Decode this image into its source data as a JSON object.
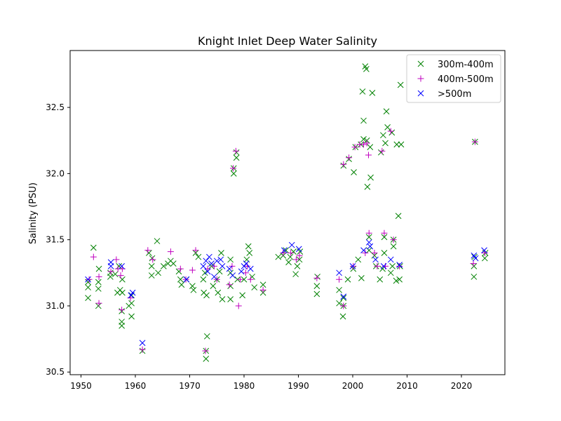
{
  "chart_data": {
    "type": "scatter",
    "title": "Knight Inlet Deep Water Salinity",
    "xlabel": "",
    "ylabel": "Salinity (PSU)",
    "xlim": [
      1948,
      2028
    ],
    "ylim": [
      30.48,
      32.93
    ],
    "xticks": [
      1950,
      1960,
      1970,
      1980,
      1990,
      2000,
      2010,
      2020
    ],
    "yticks": [
      30.5,
      31.0,
      31.5,
      32.0,
      32.5
    ],
    "ytick_labels": [
      "30.5",
      "31.0",
      "31.5",
      "32.0",
      "32.5"
    ],
    "grid": false,
    "legend_position": "top-right",
    "series": [
      {
        "name": "300m-400m",
        "marker": "x",
        "color": "#008000",
        "points": [
          [
            1951.3,
            31.06
          ],
          [
            1951.3,
            31.14
          ],
          [
            1951.3,
            31.18
          ],
          [
            1952.3,
            31.44
          ],
          [
            1953.2,
            31.0
          ],
          [
            1953.2,
            31.13
          ],
          [
            1953.2,
            31.18
          ],
          [
            1953.3,
            31.28
          ],
          [
            1955.4,
            31.22
          ],
          [
            1955.4,
            31.25
          ],
          [
            1956.3,
            31.24
          ],
          [
            1956.7,
            31.1
          ],
          [
            1957.0,
            31.3
          ],
          [
            1957.2,
            31.12
          ],
          [
            1957.5,
            30.85
          ],
          [
            1957.5,
            30.88
          ],
          [
            1957.5,
            30.96
          ],
          [
            1957.6,
            31.1
          ],
          [
            1957.6,
            31.2
          ],
          [
            1958.8,
            31.0
          ],
          [
            1959.3,
            30.92
          ],
          [
            1959.3,
            31.02
          ],
          [
            1959.3,
            31.08
          ],
          [
            1961.3,
            30.66
          ],
          [
            1962.5,
            31.4
          ],
          [
            1963.0,
            31.23
          ],
          [
            1963.0,
            31.3
          ],
          [
            1963.1,
            31.36
          ],
          [
            1964.0,
            31.49
          ],
          [
            1964.2,
            31.25
          ],
          [
            1965.2,
            31.3
          ],
          [
            1966.0,
            31.32
          ],
          [
            1966.5,
            31.34
          ],
          [
            1967.0,
            31.32
          ],
          [
            1968.0,
            31.26
          ],
          [
            1968.3,
            31.2
          ],
          [
            1968.5,
            31.16
          ],
          [
            1969.4,
            31.2
          ],
          [
            1970.5,
            31.15
          ],
          [
            1970.7,
            31.12
          ],
          [
            1971.1,
            31.4
          ],
          [
            1971.6,
            31.37
          ],
          [
            1972.5,
            31.2
          ],
          [
            1972.6,
            31.1
          ],
          [
            1972.8,
            31.25
          ],
          [
            1973.0,
            30.66
          ],
          [
            1973.0,
            30.6
          ],
          [
            1973.1,
            31.08
          ],
          [
            1973.2,
            30.77
          ],
          [
            1974.0,
            31.3
          ],
          [
            1974.3,
            31.15
          ],
          [
            1975.0,
            31.2
          ],
          [
            1975.2,
            31.1
          ],
          [
            1975.5,
            31.26
          ],
          [
            1975.8,
            31.4
          ],
          [
            1976.0,
            31.05
          ],
          [
            1977.5,
            31.05
          ],
          [
            1977.5,
            31.15
          ],
          [
            1977.5,
            31.25
          ],
          [
            1977.5,
            31.35
          ],
          [
            1978.1,
            32.0
          ],
          [
            1978.1,
            32.04
          ],
          [
            1978.6,
            32.12
          ],
          [
            1978.6,
            32.16
          ],
          [
            1978.8,
            31.2
          ],
          [
            1979.7,
            31.08
          ],
          [
            1980.0,
            31.2
          ],
          [
            1980.5,
            31.35
          ],
          [
            1980.8,
            31.45
          ],
          [
            1981.0,
            31.4
          ],
          [
            1981.5,
            31.22
          ],
          [
            1981.9,
            31.14
          ],
          [
            1983.5,
            31.1
          ],
          [
            1983.5,
            31.16
          ],
          [
            1986.3,
            31.37
          ],
          [
            1987.2,
            31.38
          ],
          [
            1987.7,
            31.42
          ],
          [
            1988.2,
            31.33
          ],
          [
            1988.5,
            31.37
          ],
          [
            1989.1,
            31.41
          ],
          [
            1989.5,
            31.24
          ],
          [
            1989.8,
            31.3
          ],
          [
            1990.2,
            31.35
          ],
          [
            1990.3,
            31.41
          ],
          [
            1993.4,
            31.09
          ],
          [
            1993.4,
            31.15
          ],
          [
            1993.5,
            31.22
          ],
          [
            1997.5,
            31.02
          ],
          [
            1997.5,
            31.12
          ],
          [
            1998.2,
            30.92
          ],
          [
            1998.3,
            31.0
          ],
          [
            1998.3,
            31.06
          ],
          [
            1998.3,
            32.06
          ],
          [
            1999.1,
            31.2
          ],
          [
            1999.3,
            32.11
          ],
          [
            2000.1,
            31.28
          ],
          [
            2000.2,
            32.01
          ],
          [
            2000.5,
            32.2
          ],
          [
            2001.0,
            31.35
          ],
          [
            2001.5,
            32.22
          ],
          [
            2001.6,
            31.21
          ],
          [
            2001.8,
            32.62
          ],
          [
            2002.0,
            32.26
          ],
          [
            2002.0,
            32.4
          ],
          [
            2002.3,
            32.81
          ],
          [
            2002.5,
            32.79
          ],
          [
            2002.6,
            32.25
          ],
          [
            2002.7,
            31.9
          ],
          [
            2003.0,
            31.42
          ],
          [
            2003.0,
            31.52
          ],
          [
            2003.2,
            32.2
          ],
          [
            2003.3,
            31.97
          ],
          [
            2003.6,
            32.61
          ],
          [
            2004.0,
            31.38
          ],
          [
            2004.3,
            31.3
          ],
          [
            2005.0,
            31.2
          ],
          [
            2005.2,
            32.16
          ],
          [
            2005.5,
            31.28
          ],
          [
            2005.6,
            32.29
          ],
          [
            2005.8,
            31.4
          ],
          [
            2005.8,
            31.52
          ],
          [
            2006.0,
            32.23
          ],
          [
            2006.2,
            32.47
          ],
          [
            2006.4,
            32.35
          ],
          [
            2007.0,
            31.25
          ],
          [
            2007.2,
            32.31
          ],
          [
            2007.3,
            31.3
          ],
          [
            2007.5,
            31.45
          ],
          [
            2007.5,
            31.5
          ],
          [
            2008.0,
            31.19
          ],
          [
            2008.1,
            32.22
          ],
          [
            2008.4,
            31.68
          ],
          [
            2008.6,
            31.2
          ],
          [
            2008.7,
            31.3
          ],
          [
            2008.8,
            32.67
          ],
          [
            2008.9,
            32.22
          ],
          [
            2022.3,
            31.22
          ],
          [
            2022.3,
            31.3
          ],
          [
            2022.4,
            31.37
          ],
          [
            2022.5,
            32.24
          ],
          [
            2024.3,
            31.36
          ],
          [
            2024.4,
            31.4
          ]
        ]
      },
      {
        "name": "400m-500m",
        "marker": "+",
        "color": "#bf00bf",
        "points": [
          [
            1951.5,
            31.2
          ],
          [
            1952.3,
            31.37
          ],
          [
            1953.3,
            31.02
          ],
          [
            1953.3,
            31.22
          ],
          [
            1955.5,
            31.26
          ],
          [
            1956.5,
            31.35
          ],
          [
            1956.8,
            31.28
          ],
          [
            1957.3,
            31.23
          ],
          [
            1957.5,
            30.97
          ],
          [
            1957.6,
            31.28
          ],
          [
            1959.1,
            31.06
          ],
          [
            1961.3,
            30.67
          ],
          [
            1962.3,
            31.42
          ],
          [
            1963.2,
            31.35
          ],
          [
            1966.5,
            31.41
          ],
          [
            1968.3,
            31.28
          ],
          [
            1969.3,
            31.2
          ],
          [
            1970.5,
            31.27
          ],
          [
            1971.1,
            31.42
          ],
          [
            1972.9,
            30.66
          ],
          [
            1973.3,
            31.28
          ],
          [
            1974.5,
            31.3
          ],
          [
            1975.0,
            31.2
          ],
          [
            1977.3,
            31.16
          ],
          [
            1977.8,
            31.3
          ],
          [
            1978.0,
            32.04
          ],
          [
            1978.5,
            32.17
          ],
          [
            1979.0,
            31.0
          ],
          [
            1979.3,
            31.2
          ],
          [
            1980.3,
            31.25
          ],
          [
            1980.6,
            31.3
          ],
          [
            1981.2,
            31.2
          ],
          [
            1983.5,
            31.12
          ],
          [
            1987.2,
            31.4
          ],
          [
            1988.6,
            31.4
          ],
          [
            1989.6,
            31.35
          ],
          [
            1990.2,
            31.38
          ],
          [
            1993.4,
            31.21
          ],
          [
            1997.5,
            31.2
          ],
          [
            1998.3,
            31.0
          ],
          [
            1998.3,
            32.07
          ],
          [
            1999.3,
            32.12
          ],
          [
            2000.1,
            31.3
          ],
          [
            2000.4,
            32.2
          ],
          [
            2001.3,
            32.22
          ],
          [
            2002.0,
            32.22
          ],
          [
            2002.3,
            31.4
          ],
          [
            2002.6,
            32.23
          ],
          [
            2002.9,
            32.14
          ],
          [
            2003.0,
            31.55
          ],
          [
            2004.0,
            31.4
          ],
          [
            2004.5,
            31.3
          ],
          [
            2005.4,
            32.17
          ],
          [
            2005.8,
            31.55
          ],
          [
            2006.0,
            31.3
          ],
          [
            2007.0,
            32.32
          ],
          [
            2007.5,
            31.5
          ],
          [
            2008.6,
            31.3
          ],
          [
            2022.2,
            31.32
          ],
          [
            2022.5,
            32.24
          ],
          [
            2024.3,
            31.4
          ]
        ]
      },
      {
        "name": ">500m",
        "marker": "x",
        "color": "#0000ff",
        "points": [
          [
            1951.3,
            31.2
          ],
          [
            1955.5,
            31.33
          ],
          [
            1955.5,
            31.3
          ],
          [
            1957.5,
            31.3
          ],
          [
            1959.2,
            31.08
          ],
          [
            1959.5,
            31.1
          ],
          [
            1961.3,
            30.72
          ],
          [
            1969.4,
            31.2
          ],
          [
            1972.5,
            31.3
          ],
          [
            1973.0,
            31.34
          ],
          [
            1973.3,
            31.26
          ],
          [
            1973.6,
            31.37
          ],
          [
            1974.0,
            31.32
          ],
          [
            1974.5,
            31.22
          ],
          [
            1975.0,
            31.34
          ],
          [
            1975.7,
            31.35
          ],
          [
            1976.0,
            31.3
          ],
          [
            1977.3,
            31.28
          ],
          [
            1977.9,
            31.23
          ],
          [
            1979.5,
            31.26
          ],
          [
            1980.0,
            31.3
          ],
          [
            1980.4,
            31.32
          ],
          [
            1981.2,
            31.28
          ],
          [
            1987.4,
            31.42
          ],
          [
            1988.8,
            31.46
          ],
          [
            1990.1,
            31.43
          ],
          [
            1997.5,
            31.25
          ],
          [
            1998.3,
            31.07
          ],
          [
            2000.0,
            31.3
          ],
          [
            2002.0,
            31.42
          ],
          [
            2003.0,
            31.48
          ],
          [
            2003.2,
            31.45
          ],
          [
            2004.2,
            31.35
          ],
          [
            2005.7,
            31.3
          ],
          [
            2007.0,
            31.35
          ],
          [
            2008.6,
            31.31
          ],
          [
            2022.3,
            31.38
          ],
          [
            2022.6,
            31.36
          ],
          [
            2024.2,
            31.42
          ]
        ]
      }
    ]
  }
}
